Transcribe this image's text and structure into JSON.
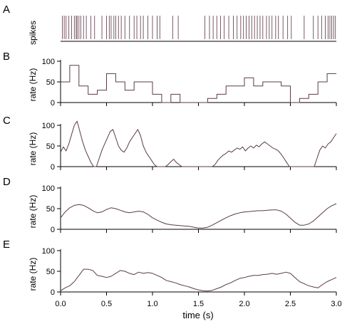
{
  "chart_data": [
    {
      "panel": "A",
      "type": "raster",
      "ylabel": "spikes",
      "spike_times": [
        0.02,
        0.04,
        0.06,
        0.09,
        0.12,
        0.15,
        0.17,
        0.18,
        0.2,
        0.22,
        0.25,
        0.28,
        0.33,
        0.37,
        0.45,
        0.5,
        0.53,
        0.55,
        0.58,
        0.6,
        0.63,
        0.66,
        0.7,
        0.75,
        0.8,
        0.83,
        0.87,
        0.9,
        0.95,
        1.0,
        1.05,
        1.08,
        1.22,
        1.28,
        1.57,
        1.62,
        1.66,
        1.7,
        1.74,
        1.78,
        1.83,
        1.88,
        1.92,
        1.96,
        1.99,
        2.02,
        2.05,
        2.08,
        2.11,
        2.14,
        2.17,
        2.2,
        2.24,
        2.27,
        2.3,
        2.34,
        2.37,
        2.42,
        2.47,
        2.51,
        2.65,
        2.75,
        2.8,
        2.84,
        2.88,
        2.91,
        2.93,
        2.95,
        2.97,
        2.99
      ]
    },
    {
      "panel": "B",
      "type": "line",
      "ylabel": "rate (Hz)",
      "yticks": [
        "0",
        "50",
        "100"
      ],
      "ylim": [
        0,
        100
      ],
      "x": [
        0.0,
        0.1,
        0.1,
        0.2,
        0.2,
        0.3,
        0.3,
        0.4,
        0.4,
        0.5,
        0.5,
        0.6,
        0.6,
        0.7,
        0.7,
        0.8,
        0.8,
        1.0,
        1.0,
        1.1,
        1.1,
        1.2,
        1.2,
        1.3,
        1.3,
        1.6,
        1.6,
        1.7,
        1.7,
        1.8,
        1.8,
        2.0,
        2.0,
        2.1,
        2.1,
        2.2,
        2.2,
        2.4,
        2.4,
        2.5,
        2.5,
        2.6,
        2.6,
        2.7,
        2.7,
        2.8,
        2.8,
        2.9,
        2.9,
        3.0
      ],
      "y": [
        50,
        50,
        90,
        90,
        40,
        40,
        20,
        20,
        30,
        30,
        70,
        70,
        50,
        50,
        30,
        30,
        50,
        50,
        20,
        20,
        0,
        0,
        20,
        20,
        0,
        0,
        10,
        10,
        20,
        20,
        40,
        40,
        60,
        60,
        40,
        40,
        50,
        50,
        40,
        40,
        0,
        0,
        10,
        10,
        20,
        20,
        50,
        50,
        70,
        70
      ]
    },
    {
      "panel": "C",
      "type": "line",
      "ylabel": "rate (Hz)",
      "yticks": [
        "0",
        "50",
        "100"
      ],
      "ylim": [
        0,
        100
      ],
      "x": [
        0.0,
        0.03,
        0.06,
        0.09,
        0.12,
        0.15,
        0.18,
        0.21,
        0.24,
        0.27,
        0.3,
        0.33,
        0.36,
        0.39,
        0.42,
        0.45,
        0.48,
        0.51,
        0.54,
        0.57,
        0.6,
        0.63,
        0.66,
        0.69,
        0.72,
        0.75,
        0.78,
        0.81,
        0.84,
        0.87,
        0.9,
        0.93,
        0.96,
        0.99,
        1.02,
        1.05,
        1.08,
        1.11,
        1.14,
        1.17,
        1.2,
        1.23,
        1.26,
        1.29,
        1.32,
        1.35,
        1.38,
        1.41,
        1.44,
        1.47,
        1.5,
        1.53,
        1.56,
        1.59,
        1.62,
        1.65,
        1.68,
        1.71,
        1.74,
        1.77,
        1.8,
        1.83,
        1.86,
        1.89,
        1.92,
        1.95,
        1.98,
        2.01,
        2.04,
        2.07,
        2.1,
        2.13,
        2.16,
        2.19,
        2.22,
        2.25,
        2.28,
        2.31,
        2.34,
        2.37,
        2.4,
        2.43,
        2.46,
        2.49,
        2.52,
        2.55,
        2.58,
        2.61,
        2.64,
        2.67,
        2.7,
        2.73,
        2.76,
        2.79,
        2.82,
        2.85,
        2.88,
        2.91,
        2.94,
        2.97,
        3.0
      ],
      "y": [
        35,
        48,
        38,
        55,
        78,
        100,
        110,
        85,
        60,
        40,
        25,
        10,
        0,
        0,
        20,
        40,
        55,
        70,
        85,
        90,
        70,
        50,
        40,
        35,
        45,
        60,
        70,
        80,
        90,
        75,
        50,
        35,
        25,
        15,
        5,
        0,
        0,
        0,
        0,
        5,
        12,
        18,
        10,
        5,
        0,
        0,
        0,
        0,
        0,
        0,
        0,
        0,
        0,
        0,
        0,
        0,
        5,
        15,
        22,
        28,
        32,
        38,
        35,
        40,
        45,
        42,
        48,
        38,
        45,
        50,
        45,
        52,
        48,
        55,
        60,
        55,
        50,
        45,
        42,
        38,
        30,
        20,
        10,
        0,
        0,
        0,
        0,
        0,
        0,
        0,
        0,
        0,
        0,
        20,
        40,
        50,
        45,
        55,
        60,
        70,
        80
      ]
    },
    {
      "panel": "D",
      "type": "line",
      "ylabel": "rate (Hz)",
      "yticks": [
        "0",
        "50",
        "100"
      ],
      "ylim": [
        0,
        100
      ],
      "x": [
        0.0,
        0.05,
        0.1,
        0.15,
        0.2,
        0.25,
        0.3,
        0.35,
        0.4,
        0.45,
        0.5,
        0.55,
        0.6,
        0.65,
        0.7,
        0.75,
        0.8,
        0.85,
        0.9,
        0.95,
        1.0,
        1.05,
        1.1,
        1.15,
        1.2,
        1.25,
        1.3,
        1.35,
        1.4,
        1.45,
        1.5,
        1.55,
        1.6,
        1.65,
        1.7,
        1.75,
        1.8,
        1.85,
        1.9,
        1.95,
        2.0,
        2.05,
        2.1,
        2.15,
        2.2,
        2.25,
        2.3,
        2.35,
        2.4,
        2.45,
        2.5,
        2.55,
        2.6,
        2.65,
        2.7,
        2.75,
        2.8,
        2.85,
        2.9,
        2.95,
        3.0
      ],
      "y": [
        28,
        42,
        52,
        58,
        60,
        58,
        52,
        45,
        40,
        42,
        48,
        52,
        50,
        46,
        42,
        40,
        42,
        44,
        42,
        36,
        28,
        22,
        17,
        13,
        11,
        10,
        9,
        8,
        7,
        5,
        3,
        3,
        5,
        10,
        16,
        22,
        28,
        33,
        37,
        40,
        42,
        43,
        44,
        45,
        45,
        46,
        47,
        47,
        44,
        37,
        27,
        17,
        10,
        10,
        13,
        20,
        30,
        40,
        50,
        57,
        62
      ]
    },
    {
      "panel": "E",
      "type": "line",
      "ylabel": "rate (Hz)",
      "yticks": [
        "0",
        "50",
        "100"
      ],
      "ylim": [
        0,
        100
      ],
      "xlabel": "time (s)",
      "xticks": [
        "0.0",
        "0.5",
        "1.0",
        "1.5",
        "2.0",
        "2.5",
        "3.0"
      ],
      "xlim": [
        0,
        3
      ],
      "x": [
        0.0,
        0.05,
        0.1,
        0.15,
        0.2,
        0.25,
        0.3,
        0.35,
        0.4,
        0.45,
        0.5,
        0.55,
        0.6,
        0.65,
        0.7,
        0.75,
        0.8,
        0.85,
        0.9,
        0.95,
        1.0,
        1.05,
        1.1,
        1.15,
        1.2,
        1.25,
        1.3,
        1.35,
        1.4,
        1.45,
        1.5,
        1.55,
        1.6,
        1.65,
        1.7,
        1.75,
        1.8,
        1.85,
        1.9,
        1.95,
        2.0,
        2.05,
        2.1,
        2.15,
        2.2,
        2.25,
        2.3,
        2.35,
        2.4,
        2.45,
        2.5,
        2.55,
        2.6,
        2.65,
        2.7,
        2.75,
        2.8,
        2.85,
        2.9,
        2.95,
        3.0
      ],
      "y": [
        3,
        10,
        15,
        25,
        40,
        55,
        55,
        52,
        40,
        38,
        35,
        38,
        45,
        52,
        50,
        45,
        42,
        48,
        45,
        47,
        45,
        40,
        35,
        28,
        25,
        22,
        18,
        15,
        12,
        8,
        5,
        3,
        2,
        4,
        8,
        12,
        18,
        22,
        28,
        33,
        35,
        38,
        40,
        40,
        42,
        43,
        45,
        43,
        45,
        48,
        45,
        35,
        25,
        20,
        15,
        12,
        10,
        18,
        25,
        30,
        35
      ]
    }
  ]
}
